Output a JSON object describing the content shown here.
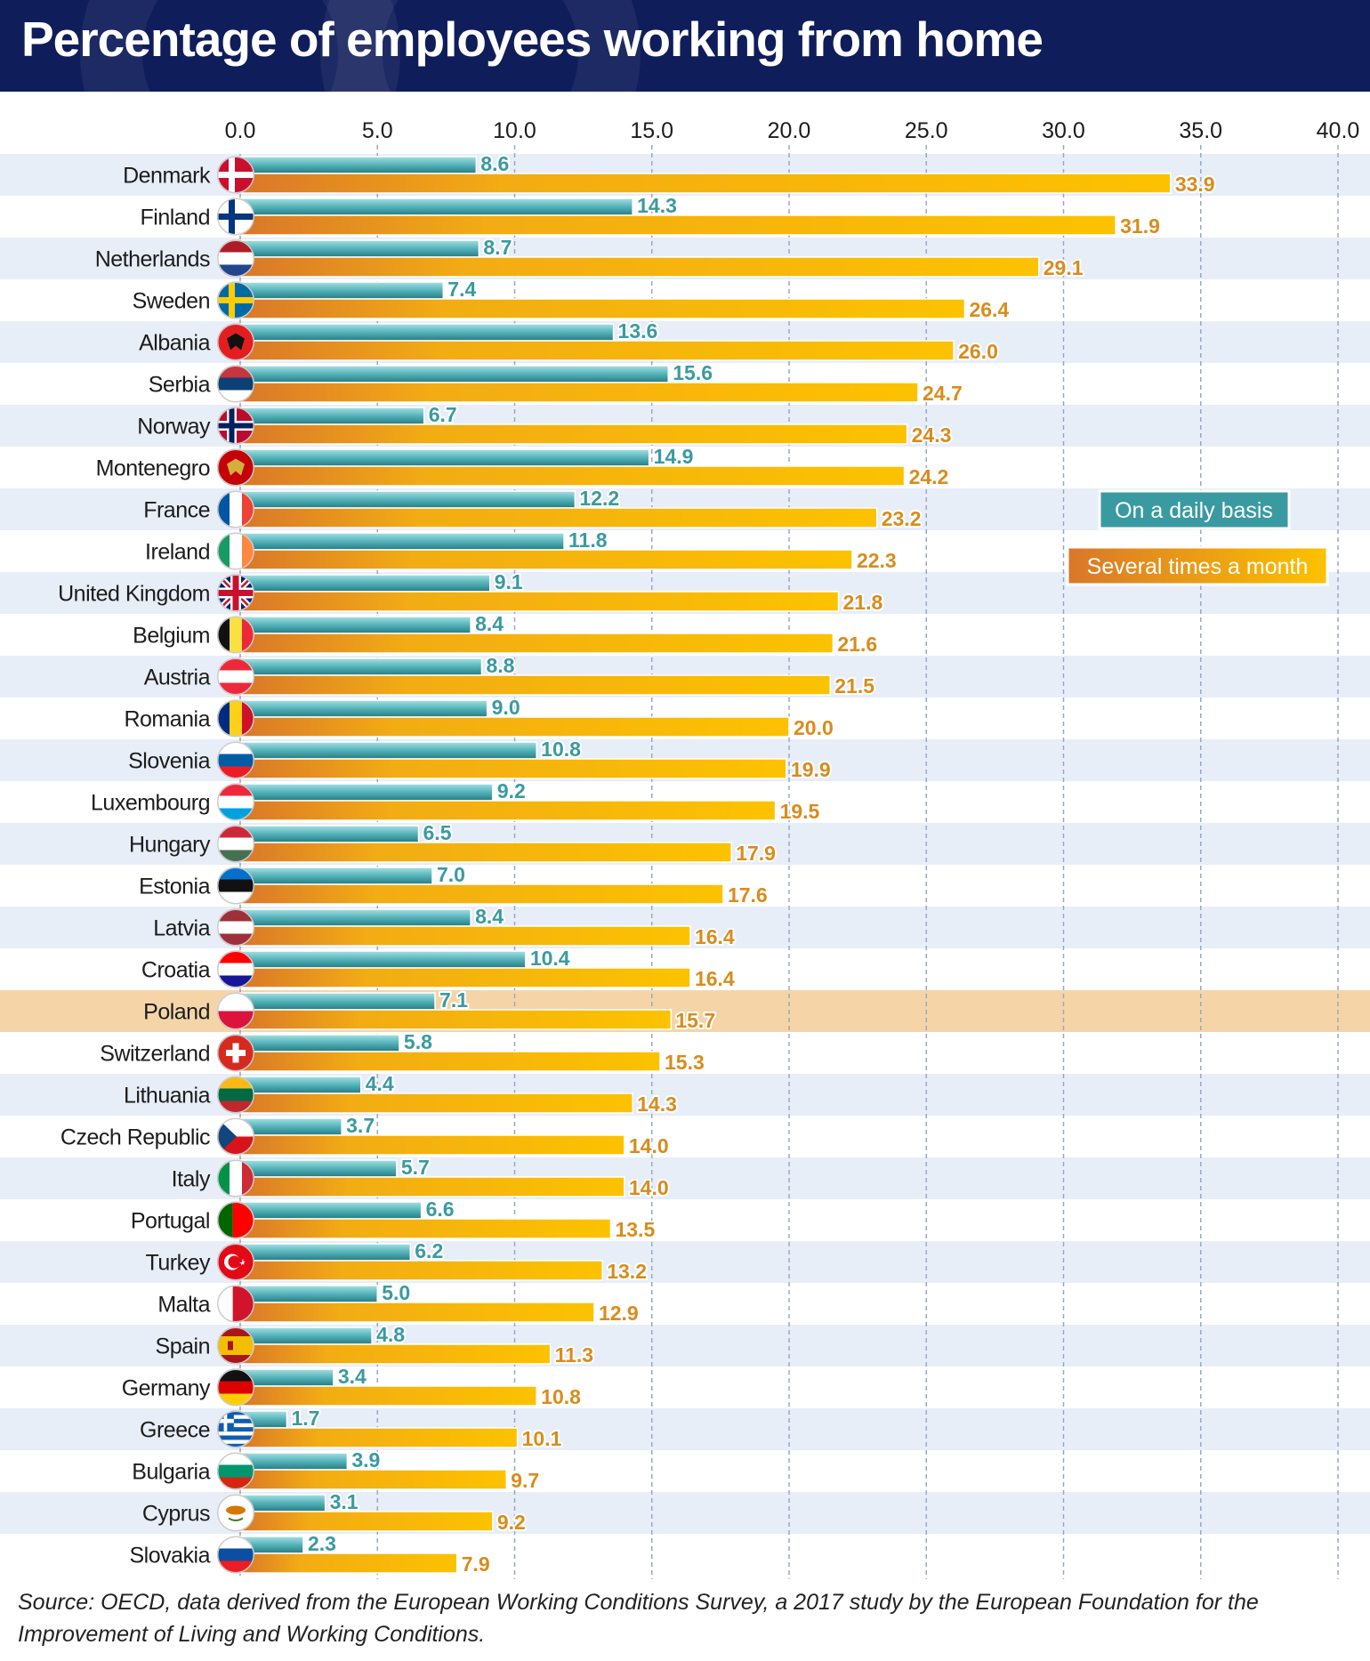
{
  "title": "Percentage of employees working from home",
  "source": "Source: OECD, data derived from the European Working Conditions Survey, a 2017 study by the European Foundation for the Improvement of Living and Working Conditions.",
  "colors": {
    "title_bg": "#0f1d5a",
    "row_stripe": "#e8eef8",
    "highlight_row": "#f5d5a8",
    "daily_bar_dark": "#2a8c93",
    "daily_bar_light": "#8fd5da",
    "monthly_bar_left": "#d9772a",
    "monthly_bar_right": "#fcc200"
  },
  "chart_data": {
    "type": "bar",
    "orientation": "horizontal",
    "highlighted_category": "Poland",
    "xlim": [
      0,
      40
    ],
    "x_ticks": [
      "0.0",
      "5.0",
      "10.0",
      "15.0",
      "20.0",
      "25.0",
      "30.0",
      "35.0",
      "40.0"
    ],
    "grid": "vertical dashed",
    "legend_position": "right",
    "categories": [
      "Denmark",
      "Finland",
      "Netherlands",
      "Sweden",
      "Albania",
      "Serbia",
      "Norway",
      "Montenegro",
      "France",
      "Ireland",
      "United Kingdom",
      "Belgium",
      "Austria",
      "Romania",
      "Slovenia",
      "Luxembourg",
      "Hungary",
      "Estonia",
      "Latvia",
      "Croatia",
      "Poland",
      "Switzerland",
      "Lithuania",
      "Czech Republic",
      "Italy",
      "Portugal",
      "Turkey",
      "Malta",
      "Spain",
      "Germany",
      "Greece",
      "Bulgaria",
      "Cyprus",
      "Slovakia"
    ],
    "series": [
      {
        "name": "On a daily basis",
        "values": [
          8.6,
          14.3,
          8.7,
          7.4,
          13.6,
          15.6,
          6.7,
          14.9,
          12.2,
          11.8,
          9.1,
          8.4,
          8.8,
          9.0,
          10.8,
          9.2,
          6.5,
          7.0,
          8.4,
          10.4,
          7.1,
          5.8,
          4.4,
          3.7,
          5.7,
          6.6,
          6.2,
          5.0,
          4.8,
          3.4,
          1.7,
          3.9,
          3.1,
          2.3
        ],
        "labels": [
          "8.6",
          "14.3",
          "8.7",
          "7.4",
          "13.6",
          "15.6",
          "6.7",
          "14.9",
          "12.2",
          "11.8",
          "9.1",
          "8.4",
          "8.8",
          "9.0",
          "10.8",
          "9.2",
          "6.5",
          "7.0",
          "8.4",
          "10.4",
          "7.1",
          "5.8",
          "4.4",
          "3.7",
          "5.7",
          "6.6",
          "6.2",
          "5.0",
          "4.8",
          "3.4",
          "1.7",
          "3.9",
          "3.1",
          "2.3"
        ]
      },
      {
        "name": "Several times a month",
        "values": [
          33.9,
          31.9,
          29.1,
          26.4,
          26.0,
          24.7,
          24.3,
          24.2,
          23.2,
          22.3,
          21.8,
          21.6,
          21.5,
          20.0,
          19.9,
          19.5,
          17.9,
          17.6,
          16.4,
          16.4,
          15.7,
          15.3,
          14.3,
          14.0,
          14.0,
          13.5,
          13.2,
          12.9,
          11.3,
          10.8,
          10.1,
          9.7,
          9.2,
          7.9
        ],
        "labels": [
          "33.9",
          "31.9",
          "29.1",
          "26.4",
          "26.0",
          "24.7",
          "24.3",
          "24.2",
          "23.2",
          "22.3",
          "21.8",
          "21.6",
          "21.5",
          "20.0",
          "19.9",
          "19.5",
          "17.9",
          "17.6",
          "16.4",
          "16.4",
          "15.7",
          "15.3",
          "14.3",
          "14.0",
          "14.0",
          "13.5",
          "13.2",
          "12.9",
          "11.3",
          "10.8",
          "10.1",
          "9.7",
          "9.2",
          "7.9"
        ]
      }
    ],
    "flags": [
      {
        "country": "Denmark",
        "type": "nordic",
        "colors": [
          "#c8102e",
          "#ffffff"
        ]
      },
      {
        "country": "Finland",
        "type": "nordic",
        "colors": [
          "#ffffff",
          "#003580"
        ]
      },
      {
        "country": "Netherlands",
        "type": "hstripes",
        "colors": [
          "#ae1c28",
          "#ffffff",
          "#21468b"
        ]
      },
      {
        "country": "Sweden",
        "type": "nordic",
        "colors": [
          "#006aa7",
          "#fecc00"
        ]
      },
      {
        "country": "Albania",
        "type": "emblem",
        "colors": [
          "#e41e20",
          "#111111"
        ]
      },
      {
        "country": "Serbia",
        "type": "hstripes",
        "colors": [
          "#c6363c",
          "#0c4076",
          "#ffffff"
        ]
      },
      {
        "country": "Norway",
        "type": "nordic3",
        "colors": [
          "#ba0c2f",
          "#ffffff",
          "#00205b"
        ]
      },
      {
        "country": "Montenegro",
        "type": "emblem",
        "colors": [
          "#c40308",
          "#d3ae3b"
        ]
      },
      {
        "country": "France",
        "type": "vstripes",
        "colors": [
          "#0055a4",
          "#ffffff",
          "#ef4135"
        ]
      },
      {
        "country": "Ireland",
        "type": "vstripes",
        "colors": [
          "#169b62",
          "#ffffff",
          "#ff883e"
        ]
      },
      {
        "country": "United Kingdom",
        "type": "uk",
        "colors": [
          "#012169",
          "#ffffff",
          "#c8102e"
        ]
      },
      {
        "country": "Belgium",
        "type": "vstripes",
        "colors": [
          "#111111",
          "#fae042",
          "#ed2939"
        ]
      },
      {
        "country": "Austria",
        "type": "hstripes",
        "colors": [
          "#ed2939",
          "#ffffff",
          "#ed2939"
        ]
      },
      {
        "country": "Romania",
        "type": "vstripes",
        "colors": [
          "#002b7f",
          "#fcd116",
          "#ce1126"
        ]
      },
      {
        "country": "Slovenia",
        "type": "hstripes",
        "colors": [
          "#ffffff",
          "#005da4",
          "#ed1c24"
        ]
      },
      {
        "country": "Luxembourg",
        "type": "hstripes",
        "colors": [
          "#ed2939",
          "#ffffff",
          "#00a1de"
        ]
      },
      {
        "country": "Hungary",
        "type": "hstripes",
        "colors": [
          "#ce2939",
          "#ffffff",
          "#477050"
        ]
      },
      {
        "country": "Estonia",
        "type": "hstripes",
        "colors": [
          "#0072ce",
          "#111111",
          "#ffffff"
        ]
      },
      {
        "country": "Latvia",
        "type": "hstripes",
        "colors": [
          "#9e3039",
          "#ffffff",
          "#9e3039"
        ]
      },
      {
        "country": "Croatia",
        "type": "hstripes",
        "colors": [
          "#ff0000",
          "#ffffff",
          "#171796"
        ]
      },
      {
        "country": "Poland",
        "type": "hstripes2",
        "colors": [
          "#ffffff",
          "#dc143c"
        ]
      },
      {
        "country": "Switzerland",
        "type": "cross",
        "colors": [
          "#d52b1e",
          "#ffffff"
        ]
      },
      {
        "country": "Lithuania",
        "type": "hstripes",
        "colors": [
          "#fdb913",
          "#006a44",
          "#c1272d"
        ]
      },
      {
        "country": "Czech Republic",
        "type": "czech",
        "colors": [
          "#ffffff",
          "#d7141a",
          "#11457e"
        ]
      },
      {
        "country": "Italy",
        "type": "vstripes",
        "colors": [
          "#009246",
          "#ffffff",
          "#ce2b37"
        ]
      },
      {
        "country": "Portugal",
        "type": "vsplit",
        "colors": [
          "#006600",
          "#ff0000"
        ]
      },
      {
        "country": "Turkey",
        "type": "crescent",
        "colors": [
          "#e30a17",
          "#ffffff"
        ]
      },
      {
        "country": "Malta",
        "type": "vsplit",
        "colors": [
          "#ffffff",
          "#cf142b"
        ]
      },
      {
        "country": "Spain",
        "type": "spain",
        "colors": [
          "#aa151b",
          "#f1bf00"
        ]
      },
      {
        "country": "Germany",
        "type": "hstripes",
        "colors": [
          "#111111",
          "#dd0000",
          "#ffce00"
        ]
      },
      {
        "country": "Greece",
        "type": "greece",
        "colors": [
          "#0d5eaf",
          "#ffffff"
        ]
      },
      {
        "country": "Bulgaria",
        "type": "hstripes",
        "colors": [
          "#ffffff",
          "#00966e",
          "#d62612"
        ]
      },
      {
        "country": "Cyprus",
        "type": "emblem",
        "colors": [
          "#ffffff",
          "#d57800"
        ]
      },
      {
        "country": "Slovakia",
        "type": "hstripes",
        "colors": [
          "#ffffff",
          "#0b4ea2",
          "#ee1c25"
        ]
      }
    ]
  }
}
